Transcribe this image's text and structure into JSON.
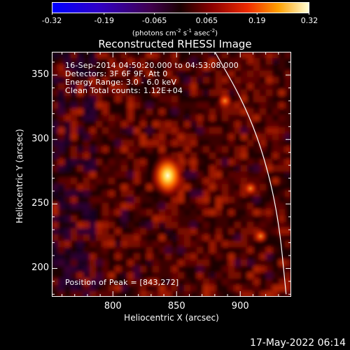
{
  "colorbar": {
    "ticks": [
      "-0.32",
      "-0.19",
      "-0.065",
      "0.065",
      "0.19",
      "0.32"
    ],
    "tick_values": [
      -0.32,
      -0.19,
      -0.065,
      0.065,
      0.19,
      0.32
    ],
    "range": [
      -0.32,
      0.32
    ],
    "units_parts": [
      "(photons cm",
      "-2",
      " s",
      "-1",
      " asec",
      "-2",
      ")"
    ]
  },
  "title": "Reconstructed RHESSI Image",
  "info": {
    "line1": "16-Sep-2014 04:50:20.000 to 04:53:08.000",
    "line2": "Detectors: 3F 6F 9F, Att 0",
    "line3": "Energy Range: 3.0 - 6.0 keV",
    "line4": "Clean     Total counts: 1.12E+04"
  },
  "peak_text": "Position of Peak = [843,272]",
  "axes": {
    "xlabel": "Heliocentric X (arcsec)",
    "ylabel": "Heliocentric Y (arcsec)",
    "xlim": [
      752,
      940
    ],
    "ylim": [
      178,
      368
    ],
    "xticks": [
      800,
      850,
      900
    ],
    "yticks": [
      200,
      250,
      300,
      350
    ]
  },
  "image": {
    "peak": [
      843,
      272
    ],
    "sources": [
      {
        "x": 843,
        "y": 272,
        "strength": 1.0
      },
      {
        "x": 908,
        "y": 262,
        "strength": 0.45
      },
      {
        "x": 888,
        "y": 330,
        "strength": 0.35
      },
      {
        "x": 916,
        "y": 225,
        "strength": 0.3
      }
    ]
  },
  "limb": {
    "points": [
      [
        880,
        368
      ],
      [
        902,
        330
      ],
      [
        918,
        290
      ],
      [
        930,
        240
      ],
      [
        936,
        180
      ]
    ]
  },
  "timestamp": "17-May-2022 06:14",
  "colors": {
    "background": "#000000",
    "text": "#ffffff"
  }
}
